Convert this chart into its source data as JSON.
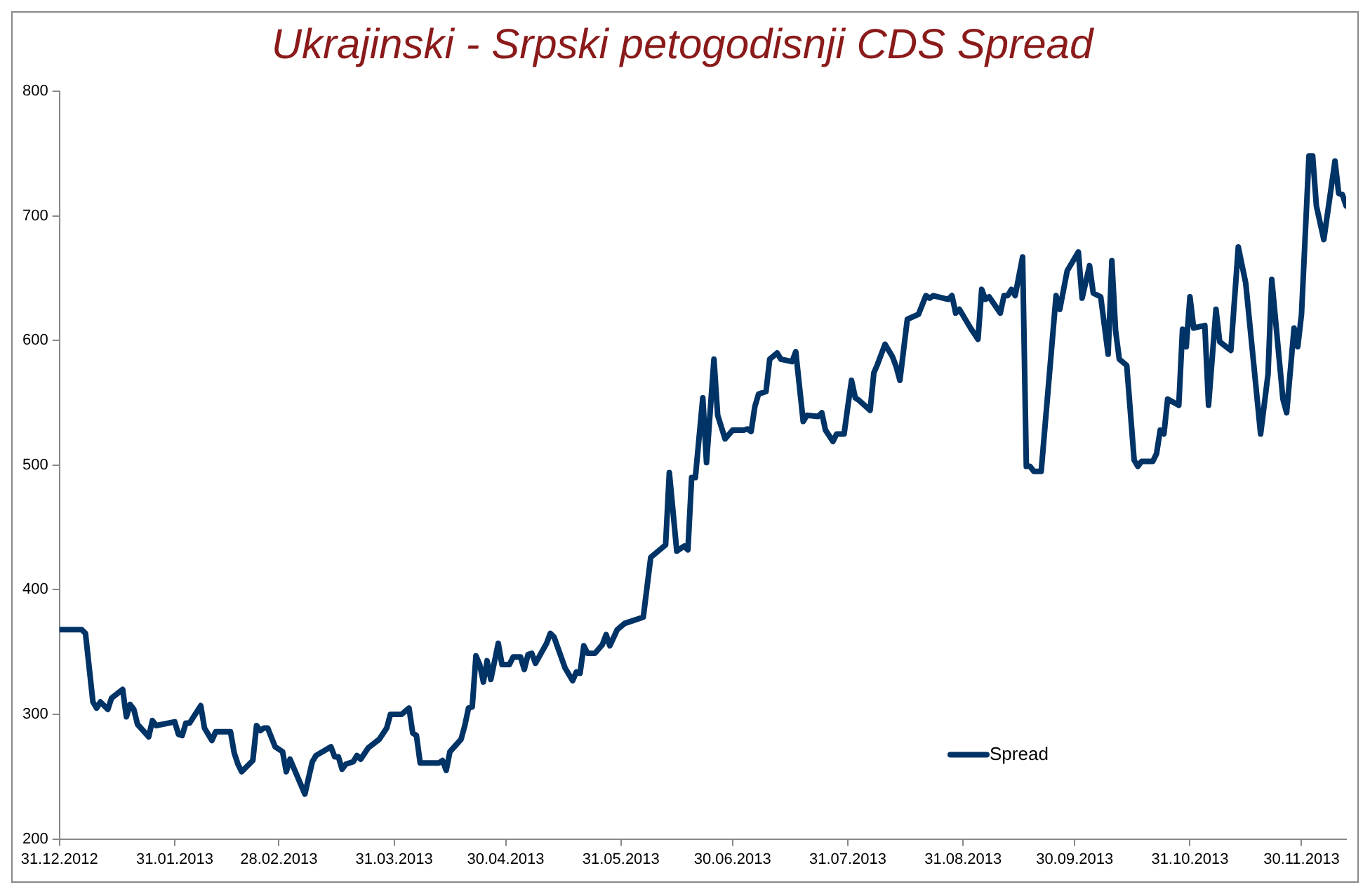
{
  "chart_data": {
    "type": "line",
    "title": "Ukrajinski - Srpski petogodisnji CDS Spread",
    "x": [
      "2012-12-31",
      "2013-01-06",
      "2013-01-07",
      "2013-01-09",
      "2013-01-10",
      "2013-01-11",
      "2013-01-13",
      "2013-01-14",
      "2013-01-17",
      "2013-01-18",
      "2013-01-19",
      "2013-01-20",
      "2013-01-21",
      "2013-01-24",
      "2013-01-25",
      "2013-01-26",
      "2013-01-31",
      "2013-02-01",
      "2013-02-02",
      "2013-02-03",
      "2013-02-04",
      "2013-02-07",
      "2013-02-08",
      "2013-02-10",
      "2013-02-11",
      "2013-02-15",
      "2013-02-16",
      "2013-02-17",
      "2013-02-18",
      "2013-02-21",
      "2013-02-22",
      "2013-02-23",
      "2013-02-24",
      "2013-02-25",
      "2013-02-27",
      "2013-03-01",
      "2013-03-02",
      "2013-03-03",
      "2013-03-07",
      "2013-03-09",
      "2013-03-10",
      "2013-03-14",
      "2013-03-15",
      "2013-03-16",
      "2013-03-17",
      "2013-03-18",
      "2013-03-20",
      "2013-03-21",
      "2013-03-22",
      "2013-03-24",
      "2013-03-27",
      "2013-03-29",
      "2013-03-30",
      "2013-04-02",
      "2013-04-04",
      "2013-04-05",
      "2013-04-06",
      "2013-04-07",
      "2013-04-12",
      "2013-04-13",
      "2013-04-14",
      "2013-04-15",
      "2013-04-18",
      "2013-04-19",
      "2013-04-20",
      "2013-04-21",
      "2013-04-22",
      "2013-04-23",
      "2013-04-24",
      "2013-04-25",
      "2013-04-26",
      "2013-04-28",
      "2013-04-29",
      "2013-05-01",
      "2013-05-02",
      "2013-05-04",
      "2013-05-05",
      "2013-05-06",
      "2013-05-07",
      "2013-05-08",
      "2013-05-11",
      "2013-05-12",
      "2013-05-13",
      "2013-05-16",
      "2013-05-18",
      "2013-05-19",
      "2013-05-20",
      "2013-05-21",
      "2013-05-22",
      "2013-05-24",
      "2013-05-26",
      "2013-05-27",
      "2013-05-28",
      "2013-05-30",
      "2013-06-01",
      "2013-06-06",
      "2013-06-08",
      "2013-06-12",
      "2013-06-13",
      "2013-06-15",
      "2013-06-17",
      "2013-06-18",
      "2013-06-19",
      "2013-06-20",
      "2013-06-22",
      "2013-06-23",
      "2013-06-25",
      "2013-06-26",
      "2013-06-28",
      "2013-06-30",
      "2013-07-03",
      "2013-07-04",
      "2013-07-05",
      "2013-07-06",
      "2013-07-07",
      "2013-07-09",
      "2013-07-10",
      "2013-07-12",
      "2013-07-13",
      "2013-07-16",
      "2013-07-17",
      "2013-07-19",
      "2013-07-20",
      "2013-07-23",
      "2013-07-24",
      "2013-07-25",
      "2013-07-27",
      "2013-07-28",
      "2013-07-30",
      "2013-07-31",
      "2013-08-01",
      "2013-08-02",
      "2013-08-03",
      "2013-08-06",
      "2013-08-07",
      "2013-08-08",
      "2013-08-10",
      "2013-08-12",
      "2013-08-13",
      "2013-08-14",
      "2013-08-16",
      "2013-08-19",
      "2013-08-21",
      "2013-08-22",
      "2013-08-23",
      "2013-08-27",
      "2013-08-28",
      "2013-08-29",
      "2013-08-30",
      "2013-09-02",
      "2013-09-04",
      "2013-09-05",
      "2013-09-06",
      "2013-09-07",
      "2013-09-10",
      "2013-09-11",
      "2013-09-12",
      "2013-09-13",
      "2013-09-14",
      "2013-09-16",
      "2013-09-17",
      "2013-09-18",
      "2013-09-19",
      "2013-09-21",
      "2013-09-25",
      "2013-09-26",
      "2013-09-28",
      "2013-10-01",
      "2013-10-02",
      "2013-10-04",
      "2013-10-05",
      "2013-10-07",
      "2013-10-09",
      "2013-10-10",
      "2013-10-11",
      "2013-10-12",
      "2013-10-14",
      "2013-10-16",
      "2013-10-17",
      "2013-10-18",
      "2013-10-21",
      "2013-10-22",
      "2013-10-23",
      "2013-10-24",
      "2013-10-25",
      "2013-10-28",
      "2013-10-29",
      "2013-10-30",
      "2013-10-31",
      "2013-11-01",
      "2013-11-04",
      "2013-11-05",
      "2013-11-07",
      "2013-11-08",
      "2013-11-11",
      "2013-11-13",
      "2013-11-15",
      "2013-11-19",
      "2013-11-21",
      "2013-11-22",
      "2013-11-25",
      "2013-11-26",
      "2013-11-28",
      "2013-11-29",
      "2013-11-30",
      "2013-12-02",
      "2013-12-03",
      "2013-12-04",
      "2013-12-06",
      "2013-12-09",
      "2013-12-10",
      "2013-12-11",
      "2013-12-12"
    ],
    "series": [
      {
        "name": "Spread",
        "color": "#003366",
        "values": [
          368,
          368,
          365,
          310,
          305,
          310,
          304,
          313,
          320,
          298,
          308,
          304,
          292,
          282,
          295,
          291,
          294,
          284,
          283,
          293,
          293,
          307,
          289,
          279,
          286,
          286,
          269,
          260,
          254,
          263,
          291,
          287,
          289,
          289,
          274,
          270,
          254,
          264,
          236,
          262,
          267,
          274,
          266,
          266,
          256,
          260,
          262,
          267,
          264,
          273,
          280,
          289,
          300,
          300,
          305,
          285,
          283,
          261,
          261,
          263,
          255,
          270,
          280,
          291,
          305,
          306,
          347,
          340,
          326,
          343,
          328,
          357,
          340,
          340,
          346,
          346,
          336,
          348,
          349,
          341,
          357,
          365,
          362,
          337,
          327,
          334,
          333,
          355,
          349,
          349,
          356,
          364,
          355,
          368,
          373,
          378,
          426,
          436,
          494,
          431,
          435,
          432,
          490,
          490,
          554,
          502,
          585,
          540,
          521,
          528,
          528,
          529,
          527,
          547,
          557,
          559,
          585,
          590,
          585,
          583,
          591,
          535,
          540,
          539,
          542,
          528,
          519,
          525,
          525,
          547,
          568,
          554,
          552,
          544,
          574,
          581,
          597,
          587,
          579,
          568,
          617,
          621,
          636,
          634,
          636,
          633,
          636,
          622,
          625,
          610,
          601,
          641,
          633,
          635,
          622,
          636,
          636,
          641,
          636,
          667,
          499,
          499,
          495,
          495,
          636,
          625,
          656,
          671,
          634,
          660,
          638,
          635,
          589,
          664,
          608,
          585,
          580,
          504,
          499,
          503,
          503,
          509,
          528,
          525,
          553,
          548,
          609,
          595,
          635,
          610,
          612,
          548,
          625,
          599,
          592,
          675,
          646,
          525,
          573,
          649,
          553,
          542,
          610,
          595,
          621,
          748,
          748,
          708,
          681,
          744,
          718,
          717,
          708
        ]
      }
    ],
    "ylim": [
      200,
      800
    ],
    "yticks": [
      200,
      300,
      400,
      500,
      600,
      700,
      800
    ],
    "xlim": [
      "2012-12-31",
      "2013-12-12"
    ],
    "xticks": [
      {
        "value": "2012-12-31",
        "label": "31.12.2012"
      },
      {
        "value": "2013-01-31",
        "label": "31.01.2013"
      },
      {
        "value": "2013-02-28",
        "label": "28.02.2013"
      },
      {
        "value": "2013-03-31",
        "label": "31.03.2013"
      },
      {
        "value": "2013-04-30",
        "label": "30.04.2013"
      },
      {
        "value": "2013-05-31",
        "label": "31.05.2013"
      },
      {
        "value": "2013-06-30",
        "label": "30.06.2013"
      },
      {
        "value": "2013-07-31",
        "label": "31.07.2013"
      },
      {
        "value": "2013-08-31",
        "label": "31.08.2013"
      },
      {
        "value": "2013-09-30",
        "label": "30.09.2013"
      },
      {
        "value": "2013-10-31",
        "label": "31.10.2013"
      },
      {
        "value": "2013-11-30",
        "label": "30.11.2013"
      }
    ],
    "grid": false,
    "legend": "bottom right",
    "marker": "none",
    "line_style": "solid"
  }
}
